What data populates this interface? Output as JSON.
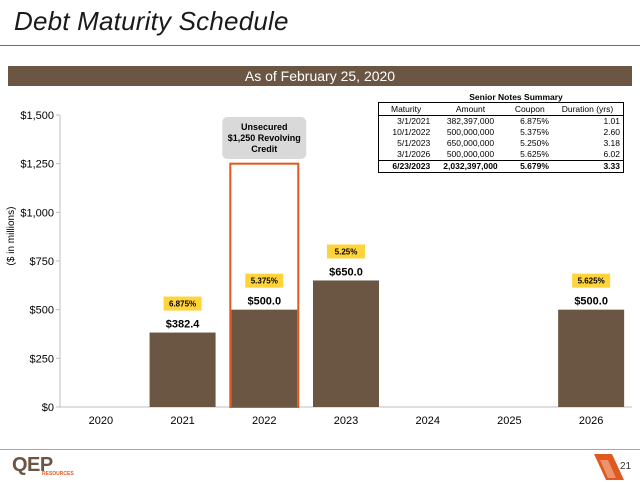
{
  "page": {
    "title": "Debt Maturity Schedule",
    "banner": "As of February 25, 2020",
    "page_number": "21",
    "logo_text": "QEP",
    "logo_sub": "RESOURCES"
  },
  "chart_data": {
    "type": "bar",
    "categories": [
      "2020",
      "2021",
      "2022",
      "2023",
      "2024",
      "2025",
      "2026"
    ],
    "values": [
      0,
      382.4,
      500.0,
      650.0,
      0,
      0,
      500.0
    ],
    "value_labels": [
      "",
      "$382.4",
      "$500.0",
      "$650.0",
      "",
      "",
      "$500.0"
    ],
    "coupon_labels": [
      "",
      "6.875%",
      "5.375%",
      "5.25%",
      "",
      "",
      "5.625%"
    ],
    "ylabel": "($ in millions)",
    "ylim": [
      0,
      1500
    ],
    "y_ticks": [
      0,
      250,
      500,
      750,
      1000,
      1250,
      1500
    ],
    "y_tick_labels": [
      "$0",
      "$250",
      "$500",
      "$750",
      "$1,000",
      "$1,250",
      "$1,500"
    ],
    "grid": false,
    "revolver": {
      "category": "2022",
      "value": 1250,
      "label_lines": [
        "Unsecured",
        "$1,250 Revolving",
        "Credit"
      ]
    },
    "colors": {
      "bar": "#6b5644",
      "revolver_outline": "#e05a1f",
      "coupon_badge": "#ffd43b",
      "callout_box": "#d9d9d9"
    }
  },
  "notes_summary": {
    "title": "Senior Notes Summary",
    "headers": [
      "Maturity",
      "Amount",
      "Coupon",
      "Duration (yrs)"
    ],
    "rows": [
      [
        "3/1/2021",
        "382,397,000",
        "6.875%",
        "1.01"
      ],
      [
        "10/1/2022",
        "500,000,000",
        "5.375%",
        "2.60"
      ],
      [
        "5/1/2023",
        "650,000,000",
        "5.250%",
        "3.18"
      ],
      [
        "3/1/2026",
        "500,000,000",
        "5.625%",
        "6.02"
      ]
    ],
    "total": [
      "6/23/2023",
      "2,032,397,000",
      "5.679%",
      "3.33"
    ]
  }
}
